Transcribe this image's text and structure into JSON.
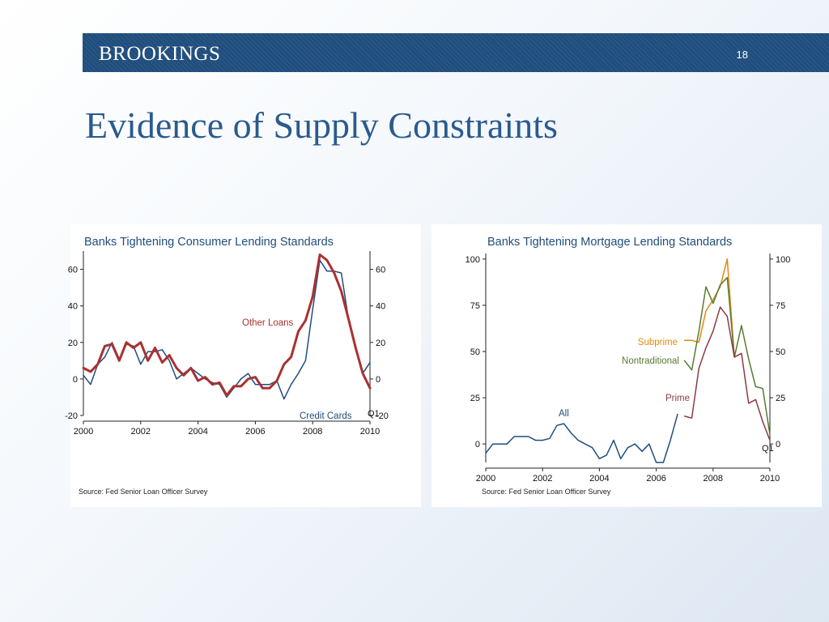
{
  "header": {
    "logo": "BROOKINGS",
    "page_number": "18"
  },
  "slide": {
    "title": "Evidence of Supply Constraints"
  },
  "colors": {
    "banner": "#1f4e7d",
    "title": "#2a5a8e",
    "navy": "#1f4e7d",
    "red": "#a83232",
    "orange": "#e08a10",
    "green": "#587a32",
    "maroon": "#8c3a42"
  },
  "chart_data": [
    {
      "type": "line",
      "title": "Banks Tightening Consumer Lending Standards",
      "source": "Source: Fed Senior Loan Officer Survey",
      "xlim": [
        2000,
        2010
      ],
      "x_ticks": [
        "2000",
        "2002",
        "2004",
        "2006",
        "2008",
        "2010"
      ],
      "ylim": [
        -20,
        70
      ],
      "y_ticks_left": [
        "60",
        "40",
        "20",
        "0",
        "-20"
      ],
      "y_ticks_right": [
        "60",
        "40",
        "20",
        "0",
        "-20"
      ],
      "annotation": "Q1",
      "grid": false,
      "series": [
        {
          "name": "Credit Cards",
          "color": "#1f4e7d",
          "x": [
            2000,
            2000.25,
            2000.5,
            2000.75,
            2001,
            2001.25,
            2001.5,
            2001.75,
            2002,
            2002.25,
            2002.5,
            2002.75,
            2003,
            2003.25,
            2003.5,
            2003.75,
            2004,
            2004.25,
            2004.5,
            2004.75,
            2005,
            2005.25,
            2005.5,
            2005.75,
            2006,
            2006.25,
            2006.5,
            2006.75,
            2007,
            2007.25,
            2007.5,
            2007.75,
            2008,
            2008.25,
            2008.5,
            2008.75,
            2009,
            2009.25,
            2009.5,
            2009.75,
            2010
          ],
          "y": [
            2,
            -3,
            8,
            12,
            20,
            11,
            19,
            18,
            8,
            15,
            15,
            16,
            10,
            0,
            3,
            6,
            3,
            0,
            -2,
            -3,
            -10,
            -5,
            0,
            3,
            -3,
            -3,
            -3,
            -1,
            -11,
            -3,
            3,
            10,
            38,
            65,
            59,
            59,
            58,
            33,
            18,
            3,
            9
          ]
        },
        {
          "name": "Other Loans",
          "color": "#a83232",
          "x": [
            2000,
            2000.25,
            2000.5,
            2000.75,
            2001,
            2001.25,
            2001.5,
            2001.75,
            2002,
            2002.25,
            2002.5,
            2002.75,
            2003,
            2003.25,
            2003.5,
            2003.75,
            2004,
            2004.25,
            2004.5,
            2004.75,
            2005,
            2005.25,
            2005.5,
            2005.75,
            2006,
            2006.25,
            2006.5,
            2006.75,
            2007,
            2007.25,
            2007.5,
            2007.75,
            2008,
            2008.25,
            2008.5,
            2008.75,
            2009,
            2009.25,
            2009.5,
            2009.75,
            2010
          ],
          "y": [
            6,
            4,
            8,
            18,
            19,
            10,
            20,
            17,
            20,
            10,
            17,
            9,
            13,
            6,
            2,
            6,
            -1,
            1,
            -3,
            -2,
            -9,
            -4,
            -4,
            0,
            1,
            -5,
            -5,
            -1,
            8,
            12,
            26,
            32,
            45,
            68,
            65,
            58,
            48,
            33,
            17,
            3,
            -5
          ]
        }
      ]
    },
    {
      "type": "line",
      "title": "Banks Tightening Mortgage Lending Standards",
      "source": "Source: Fed Senior Loan Officer Survey",
      "xlim": [
        2000,
        2010
      ],
      "x_ticks": [
        "2000",
        "2002",
        "2004",
        "2006",
        "2008",
        "2010"
      ],
      "ylim": [
        -10,
        103
      ],
      "y_ticks_left": [
        "100",
        "75",
        "50",
        "25",
        "0"
      ],
      "y_ticks_right": [
        "100",
        "75",
        "50",
        "25",
        "0"
      ],
      "annotation": "Q1",
      "grid": false,
      "series": [
        {
          "name": "All",
          "color": "#1f4e7d",
          "x": [
            2000,
            2000.25,
            2000.5,
            2000.75,
            2001,
            2001.25,
            2001.5,
            2001.75,
            2002,
            2002.25,
            2002.5,
            2002.75,
            2003,
            2003.25,
            2003.5,
            2003.75,
            2004,
            2004.25,
            2004.5,
            2004.75,
            2005,
            2005.25,
            2005.5,
            2005.75,
            2006,
            2006.25,
            2006.5,
            2006.75
          ],
          "y": [
            -5,
            0,
            0,
            0,
            4,
            4,
            4,
            2,
            2,
            3,
            10,
            11,
            6,
            2,
            0,
            -2,
            -8,
            -6,
            2,
            -8,
            -2,
            0,
            -4,
            0,
            -10,
            -10,
            2,
            16
          ]
        },
        {
          "name": "Subprime",
          "color": "#e08a10",
          "x": [
            2007,
            2007.25,
            2007.5,
            2007.75,
            2008,
            2008.25,
            2008.5,
            2008.75
          ],
          "y": [
            56,
            56,
            55,
            72,
            78,
            85,
            100,
            47
          ]
        },
        {
          "name": "Nontraditional",
          "color": "#587a32",
          "x": [
            2007,
            2007.25,
            2007.5,
            2007.75,
            2008,
            2008.25,
            2008.5,
            2008.75,
            2009,
            2009.25,
            2009.5,
            2009.75,
            2010
          ],
          "y": [
            45,
            40,
            61,
            85,
            76,
            86,
            90,
            47,
            64,
            46,
            31,
            30,
            5
          ]
        },
        {
          "name": "Prime",
          "color": "#8c3a42",
          "x": [
            2007,
            2007.25,
            2007.5,
            2007.75,
            2008,
            2008.25,
            2008.5,
            2008.75,
            2009,
            2009.25,
            2009.5,
            2009.75,
            2010
          ],
          "y": [
            15,
            14,
            41,
            52,
            61,
            74,
            69,
            47,
            49,
            22,
            24,
            12,
            2
          ]
        }
      ]
    }
  ]
}
